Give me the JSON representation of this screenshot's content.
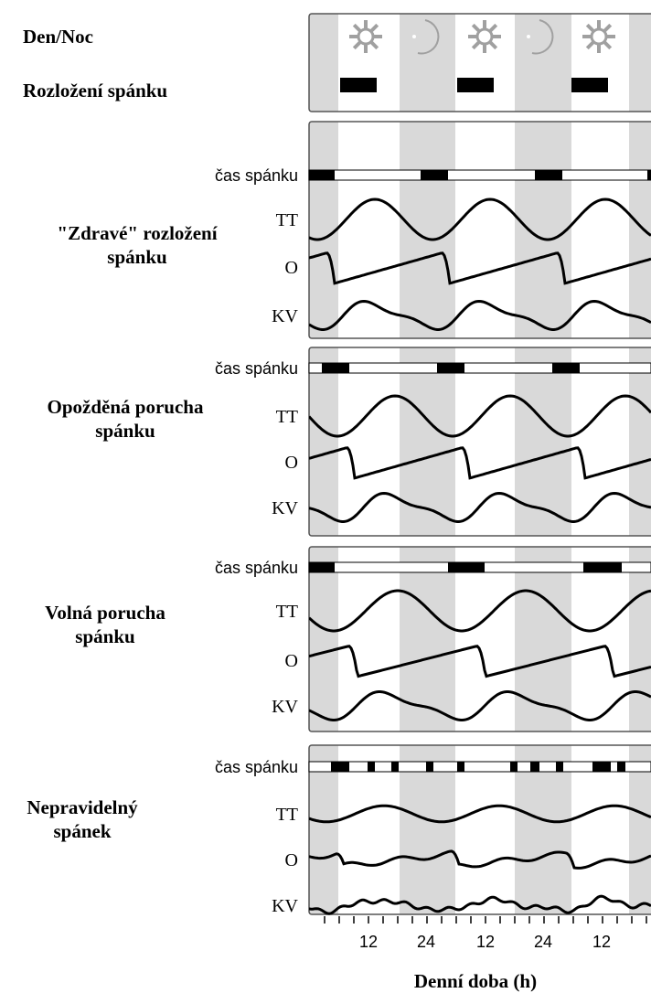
{
  "header": {
    "day_night": "Den/Noc",
    "sleep_distribution": "Rozložení spánku"
  },
  "panels": [
    {
      "title": [
        "\"Zdravé\" rozložení",
        "spánku"
      ],
      "rows": [
        "čas spánku",
        "TT",
        "O",
        "KV"
      ]
    },
    {
      "title": [
        "Opožděná porucha",
        "spánku"
      ],
      "rows": [
        "čas spánku",
        "TT",
        "O",
        "KV"
      ]
    },
    {
      "title": [
        "Volná porucha",
        "spánku"
      ],
      "rows": [
        "čas spánku",
        "TT",
        "O",
        "KV"
      ]
    },
    {
      "title": [
        "Nepravidelný",
        "spánek"
      ],
      "rows": [
        "čas spánku",
        "TT",
        "O",
        "KV"
      ]
    }
  ],
  "x_axis": {
    "ticks": [
      "12",
      "24",
      "12",
      "24",
      "12"
    ],
    "label": "Denní doba (h)"
  }
}
